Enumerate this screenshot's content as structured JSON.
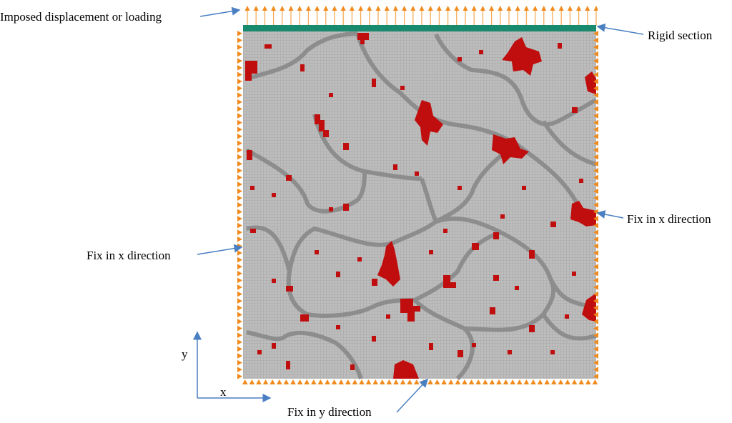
{
  "labels": {
    "loading": "Imposed displacement or loading",
    "rigid": "Rigid section",
    "fix_x_right": "Fix in x direction",
    "fix_x_left": "Fix in x direction",
    "fix_y": "Fix in y direction"
  },
  "axes": {
    "y": "y",
    "x": "x"
  }
}
